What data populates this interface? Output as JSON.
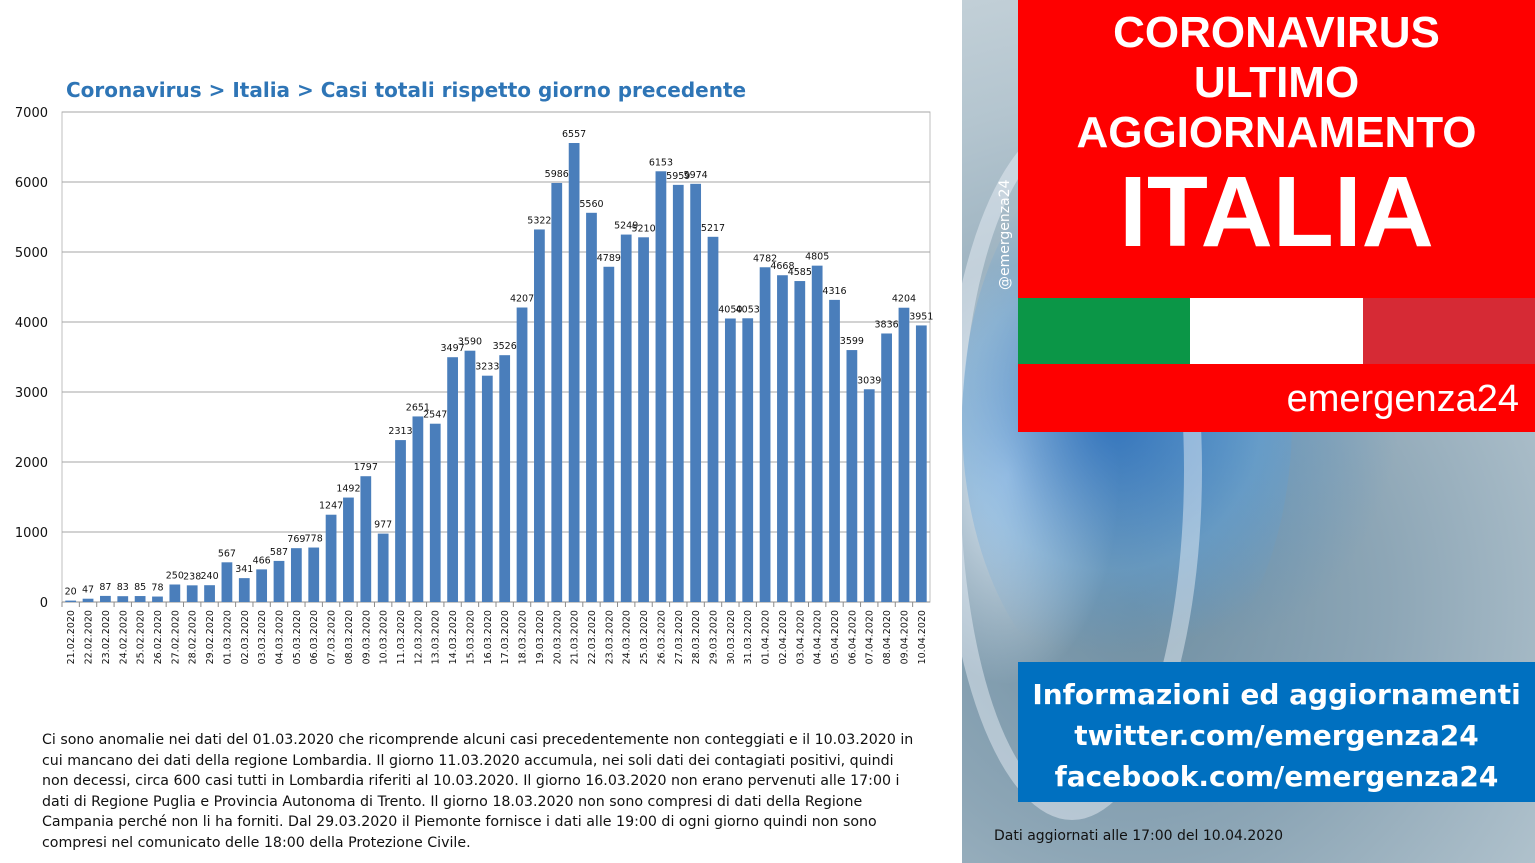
{
  "chart_data": {
    "type": "bar",
    "title": "Coronavirus > Italia > Casi totali rispetto giorno precedente",
    "xlabel": "",
    "ylabel": "",
    "ylim": [
      0,
      7000
    ],
    "yticks": [
      0,
      1000,
      2000,
      3000,
      4000,
      5000,
      6000,
      7000
    ],
    "grid": true,
    "bar_color": "#4a7ebb",
    "categories": [
      "21.02.2020",
      "22.02.2020",
      "23.02.2020",
      "24.02.2020",
      "25.02.2020",
      "26.02.2020",
      "27.02.2020",
      "28.02.2020",
      "29.02.2020",
      "01.03.2020",
      "02.03.2020",
      "03.03.2020",
      "04.03.2020",
      "05.03.2020",
      "06.03.2020",
      "07.03.2020",
      "08.03.2020",
      "09.03.2020",
      "10.03.2020",
      "11.03.2020",
      "12.03.2020",
      "13.03.2020",
      "14.03.2020",
      "15.03.2020",
      "16.03.2020",
      "17.03.2020",
      "18.03.2020",
      "19.03.2020",
      "20.03.2020",
      "21.03.2020",
      "22.03.2020",
      "23.03.2020",
      "24.03.2020",
      "25.03.2020",
      "26.03.2020",
      "27.03.2020",
      "28.03.2020",
      "29.03.2020",
      "30.03.2020",
      "31.03.2020",
      "01.04.2020",
      "02.04.2020",
      "03.04.2020",
      "04.04.2020",
      "05.04.2020",
      "06.04.2020",
      "07.04.2020",
      "08.04.2020",
      "09.04.2020",
      "10.04.2020"
    ],
    "values": [
      20,
      47,
      87,
      83,
      85,
      78,
      250,
      238,
      240,
      567,
      341,
      466,
      587,
      769,
      778,
      1247,
      1492,
      1797,
      977,
      2313,
      2651,
      2547,
      3497,
      3590,
      3233,
      3526,
      4207,
      5322,
      5986,
      6557,
      5560,
      4789,
      5249,
      5210,
      6153,
      5959,
      5974,
      5217,
      4050,
      4053,
      4782,
      4668,
      4585,
      4805,
      4316,
      3599,
      3039,
      3836,
      4204,
      3951
    ]
  },
  "note": "Ci sono anomalie nei dati del 01.03.2020 che ricomprende alcuni casi precedentemente non conteggiati e il 10.03.2020 in cui mancano dei dati della regione Lombardia. Il giorno 11.03.2020 accumula, nei soli dati dei contagiati positivi, quindi non decessi, circa 600 casi tutti in Lombardia riferiti al 10.03.2020. Il giorno 16.03.2020 non erano pervenuti alle 17:00 i dati di Regione Puglia e Provincia Autonoma di Trento. Il giorno 18.03.2020 non sono compresi di dati della Regione Campania perché non li ha forniti. Dal 29.03.2020 il Piemonte fornisce i dati alle 19:00 di ogni giorno quindi non sono compresi nel comunicato delle 18:00 della Protezione Civile.",
  "panel": {
    "handle": "@emergenza24",
    "header_line1": "CORONAVIRUS",
    "header_line2": "ULTIMO",
    "header_line3": "AGGIORNAMENTO",
    "header_big": "ITALIA",
    "brand": "emergenza24",
    "info_line1": "Informazioni ed aggiornamenti",
    "info_line2": "twitter.com/emergenza24",
    "info_line3": "facebook.com/emergenza24",
    "updated": "Dati aggiornati alle 17:00 del 10.04.2020",
    "colors": {
      "red": "#fe0000",
      "green": "#0b9647",
      "flag_red": "#d62a35",
      "blue": "#0070c0"
    }
  }
}
